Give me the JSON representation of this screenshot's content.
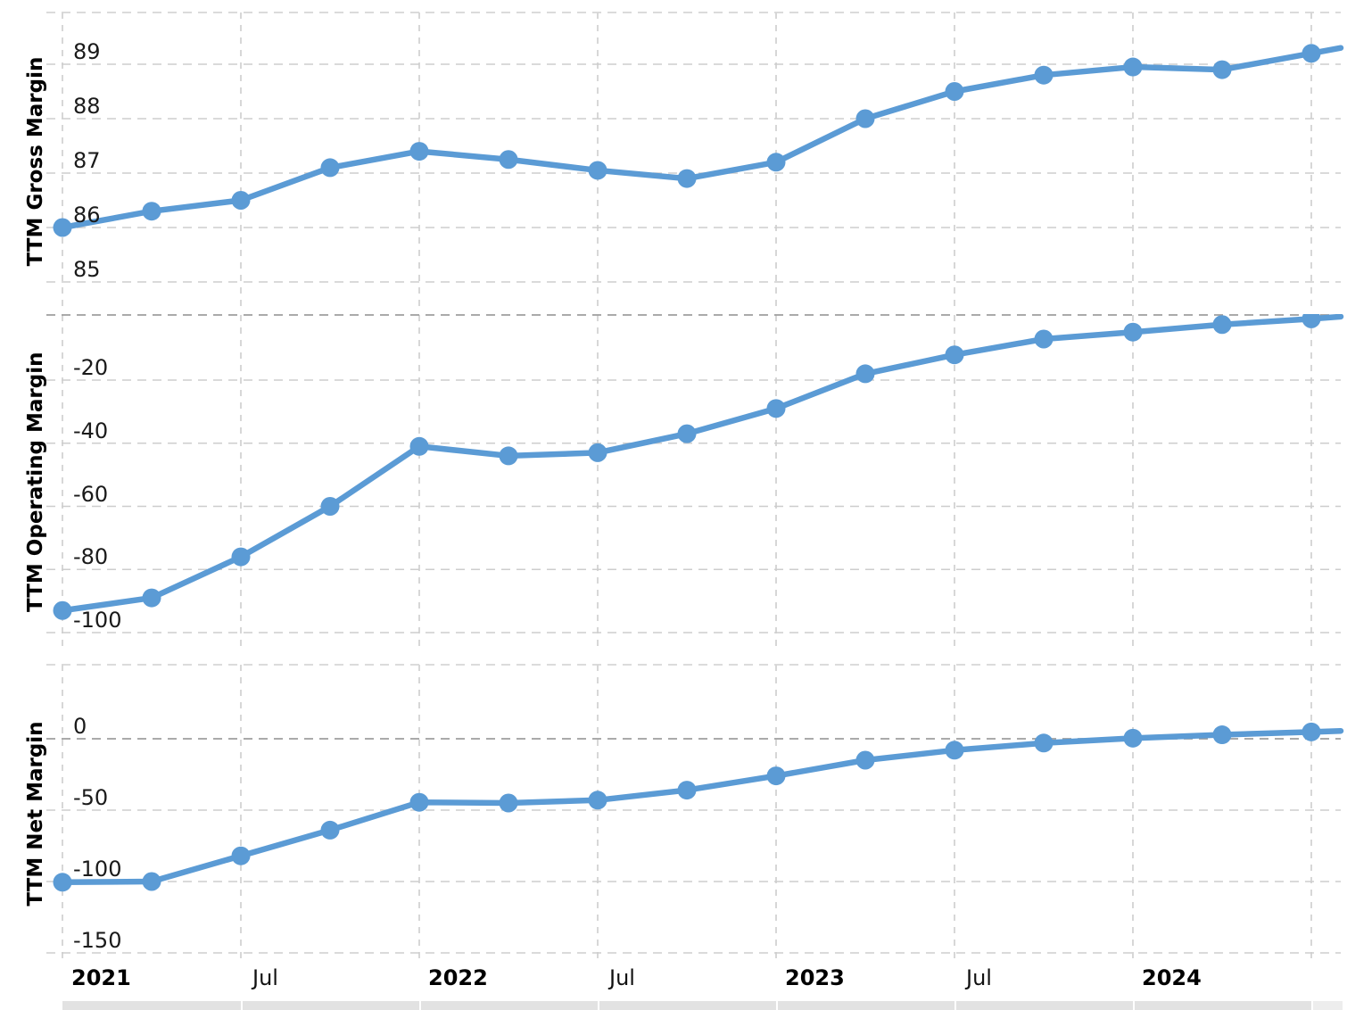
{
  "page": {
    "background": "#ffffff"
  },
  "colors": {
    "line": "#5b9bd5",
    "marker": "#5b9bd5",
    "grid": "#cdcdcd",
    "grid_dark": "#9e9e9e",
    "grid_light": "#d6d6d6",
    "tick_text": "#1a1a1a",
    "axis_title_text": "#000000",
    "table_strip": "#e2e2e2",
    "table_strip_end": "#ededed"
  },
  "x_axis": {
    "labels": [
      {
        "text": "2021",
        "bold": true
      },
      {
        "text": "Jul",
        "bold": false
      },
      {
        "text": "2022",
        "bold": true
      },
      {
        "text": "Jul",
        "bold": false
      },
      {
        "text": "2023",
        "bold": true
      },
      {
        "text": "Jul",
        "bold": false
      },
      {
        "text": "2024",
        "bold": true
      }
    ]
  },
  "chart_data": [
    {
      "type": "line",
      "title": "TTM Gross Margin",
      "ylabel": "TTM Gross Margin",
      "xlabel": "",
      "x": [
        "Jan 2021",
        "Apr 2021",
        "Jul 2021",
        "Oct 2021",
        "Jan 2022",
        "Apr 2022",
        "Jul 2022",
        "Oct 2022",
        "Jan 2023",
        "Apr 2023",
        "Jul 2023",
        "Oct 2023",
        "Jan 2024",
        "Apr 2024",
        "Jul 2024"
      ],
      "values": [
        86.0,
        86.3,
        86.5,
        87.1,
        87.4,
        87.25,
        87.05,
        86.9,
        87.2,
        88.0,
        88.5,
        88.8,
        88.95,
        88.9,
        89.2
      ],
      "y_ticks": [
        89,
        88,
        87,
        86,
        85
      ],
      "ylim": [
        84.5,
        90.0
      ],
      "grid": "dashed",
      "legend": "none",
      "marker": "circle"
    },
    {
      "type": "line",
      "title": "TTM Operating Margin",
      "ylabel": "TTM Operating Margin",
      "xlabel": "",
      "x": [
        "Jan 2021",
        "Apr 2021",
        "Jul 2021",
        "Oct 2021",
        "Jan 2022",
        "Apr 2022",
        "Jul 2022",
        "Oct 2022",
        "Jan 2023",
        "Apr 2023",
        "Jul 2023",
        "Oct 2023",
        "Jan 2024",
        "Apr 2024",
        "Jul 2024"
      ],
      "values": [
        -93,
        -89,
        -76,
        -60,
        -41,
        -44,
        -43,
        -37,
        -29,
        -18,
        -12,
        -7,
        -4.8,
        -2.4,
        -0.6
      ],
      "y_ticks": [
        -20,
        -40,
        -60,
        -80,
        -100
      ],
      "ylim": [
        -105,
        0
      ],
      "grid": "dashed",
      "legend": "none",
      "marker": "circle"
    },
    {
      "type": "line",
      "title": "TTM Net Margin",
      "ylabel": "TTM Net Margin",
      "xlabel": "",
      "x": [
        "Jan 2021",
        "Apr 2021",
        "Jul 2021",
        "Oct 2021",
        "Jan 2022",
        "Apr 2022",
        "Jul 2022",
        "Oct 2022",
        "Jan 2023",
        "Apr 2023",
        "Jul 2023",
        "Oct 2023",
        "Jan 2024",
        "Apr 2024",
        "Jul 2024"
      ],
      "values": [
        -100.5,
        -100,
        -82,
        -64,
        -44.5,
        -45,
        -43,
        -36,
        -26,
        -15,
        -8,
        -3,
        0.4,
        2.8,
        4.8
      ],
      "y_ticks": [
        0,
        -50,
        -100,
        -150
      ],
      "ylim": [
        -155,
        52
      ],
      "grid": "dashed",
      "legend": "none",
      "marker": "circle"
    }
  ]
}
